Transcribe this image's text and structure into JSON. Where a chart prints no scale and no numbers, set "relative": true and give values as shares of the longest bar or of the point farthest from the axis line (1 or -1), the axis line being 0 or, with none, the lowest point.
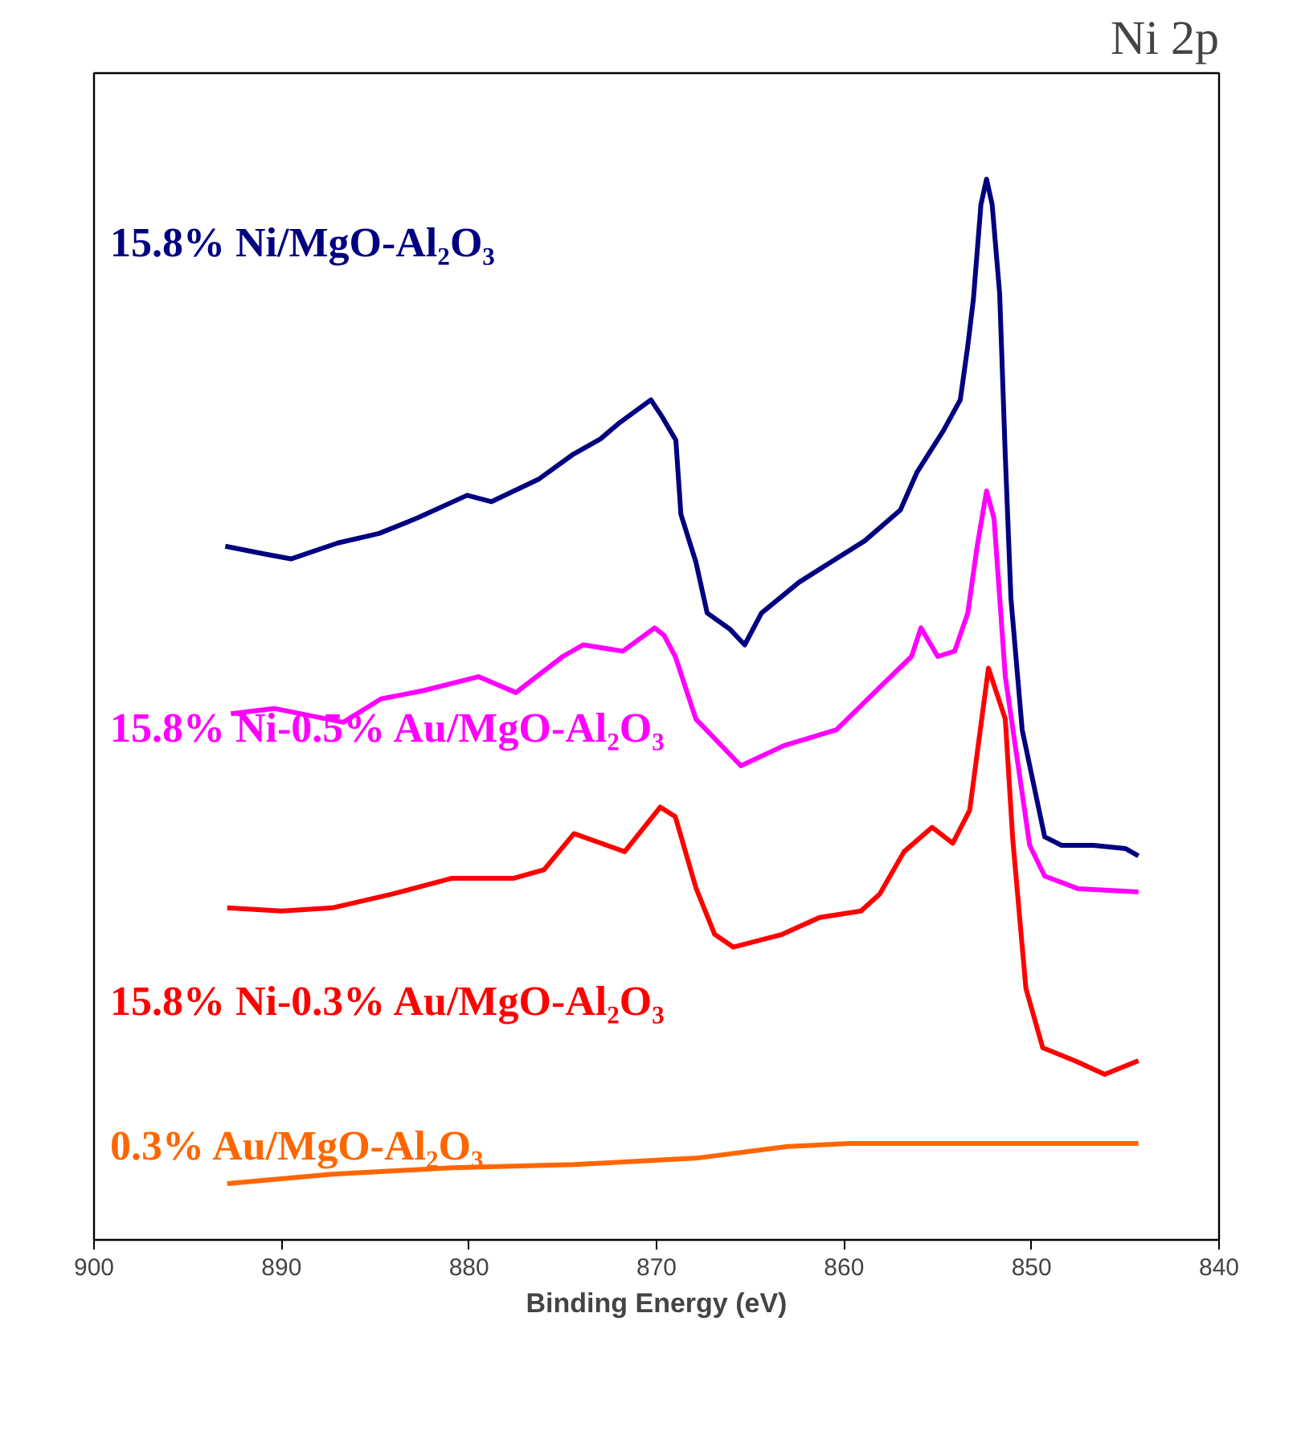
{
  "chart_data": {
    "type": "line",
    "title": "Ni 2p",
    "xlabel": "Binding Energy (eV)",
    "relative": true,
    "xlim": [
      900,
      840
    ],
    "xticks": [
      900,
      890,
      880,
      870,
      860,
      850,
      840
    ],
    "grid": false,
    "marker": "none",
    "line_style": "solid",
    "series": [
      {
        "name": "15.8% Ni/MgO-Al₂O₃",
        "color": "#000080",
        "x": [
          893.0,
          891.0,
          889.5,
          887.0,
          884.8,
          882.7,
          880.1,
          878.8,
          876.3,
          874.5,
          873.0,
          872.0,
          870.3,
          869.7,
          868.97,
          868.7,
          867.9,
          867.3,
          866.1,
          865.3,
          864.4,
          862.4,
          860.7,
          858.9,
          857.0,
          856.1,
          854.7,
          853.8,
          853.4,
          853.1,
          852.7,
          852.4,
          852.1,
          851.7,
          851.4,
          851.1,
          850.5,
          849.3,
          848.4,
          846.7,
          845.0,
          844.3
        ],
        "values": [
          0.654,
          0.647,
          0.642,
          0.657,
          0.666,
          0.681,
          0.702,
          0.696,
          0.717,
          0.74,
          0.755,
          0.77,
          0.792,
          0.776,
          0.754,
          0.684,
          0.639,
          0.591,
          0.576,
          0.561,
          0.591,
          0.62,
          0.639,
          0.659,
          0.688,
          0.724,
          0.763,
          0.792,
          0.843,
          0.887,
          0.976,
          1.0,
          0.976,
          0.892,
          0.739,
          0.605,
          0.481,
          0.38,
          0.372,
          0.372,
          0.369,
          0.362
        ]
      },
      {
        "name": "15.8% Ni-0.5% Au/MgO-Al₂O₃",
        "color": "#ff00ff",
        "x": [
          892.7,
          890.4,
          886.7,
          884.7,
          882.4,
          879.5,
          877.5,
          875.0,
          873.9,
          871.8,
          870.1,
          869.6,
          869.0,
          867.9,
          865.5,
          863.2,
          860.4,
          858.1,
          856.4,
          855.9,
          855.0,
          854.1,
          853.4,
          852.9,
          852.4,
          852.0,
          851.4,
          850.1,
          849.3,
          847.5,
          844.3
        ],
        "values": [
          0.496,
          0.501,
          0.488,
          0.51,
          0.518,
          0.531,
          0.516,
          0.55,
          0.561,
          0.555,
          0.577,
          0.57,
          0.55,
          0.491,
          0.447,
          0.466,
          0.481,
          0.521,
          0.55,
          0.577,
          0.55,
          0.555,
          0.591,
          0.654,
          0.706,
          0.68,
          0.531,
          0.372,
          0.343,
          0.331,
          0.328
        ]
      },
      {
        "name": "15.8% Ni-0.3% Au/MgO-Al₂O₃",
        "color": "#ff0000",
        "x": [
          892.9,
          890.0,
          887.3,
          884.1,
          880.9,
          877.6,
          876.0,
          874.4,
          871.7,
          869.8,
          869.0,
          867.9,
          866.9,
          865.9,
          863.3,
          861.3,
          859.1,
          858.1,
          856.8,
          855.3,
          854.2,
          853.3,
          852.3,
          851.4,
          851.0,
          850.3,
          849.4,
          847.7,
          846.1,
          844.3
        ],
        "values": [
          0.313,
          0.31,
          0.313,
          0.326,
          0.341,
          0.341,
          0.349,
          0.383,
          0.366,
          0.408,
          0.399,
          0.332,
          0.288,
          0.276,
          0.288,
          0.304,
          0.31,
          0.326,
          0.366,
          0.389,
          0.374,
          0.405,
          0.539,
          0.491,
          0.377,
          0.237,
          0.181,
          0.169,
          0.156,
          0.169
        ]
      },
      {
        "name": "0.3% Au/MgO-Al₂O₃",
        "color": "#ff6600",
        "x": [
          892.9,
          887.3,
          880.9,
          874.4,
          867.9,
          863.0,
          859.7,
          854.8,
          848.4,
          844.3
        ],
        "values": [
          0.053,
          0.062,
          0.068,
          0.071,
          0.077,
          0.088,
          0.091,
          0.091,
          0.091,
          0.091
        ]
      }
    ]
  }
}
